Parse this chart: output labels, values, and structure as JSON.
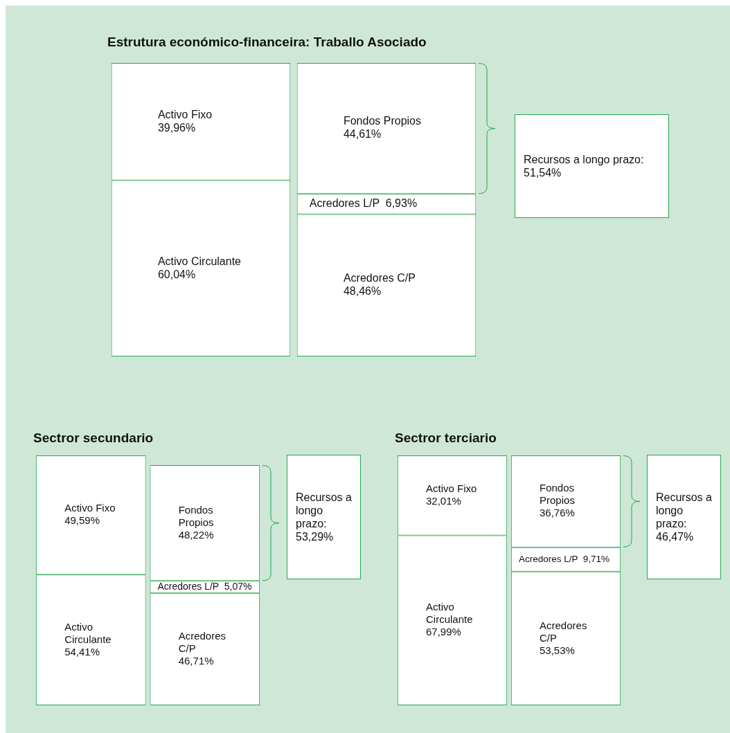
{
  "chart_data": [
    {
      "type": "bar",
      "title": "Estrutura económico-financeira: Traballo Asociado",
      "stacked": true,
      "legend": false,
      "tick_labels": false,
      "ylim": [
        0,
        100
      ],
      "categories": [
        null,
        null
      ],
      "series": [
        {
          "name": "Activo Circulante",
          "color": "#ffffff",
          "values": [
            60.04,
            null
          ],
          "value_labels": [
            "60,04%",
            null
          ]
        },
        {
          "name": "Activo Fixo",
          "color": "#ffffff",
          "values": [
            39.96,
            null
          ],
          "value_labels": [
            "39,96%",
            null
          ]
        },
        {
          "name": "Acredores C/P",
          "color": "#ffffff",
          "values": [
            null,
            48.46
          ],
          "value_labels": [
            null,
            "48,46%"
          ]
        },
        {
          "name": "Acredores L/P",
          "color": "#ffffff",
          "values": [
            null,
            6.93
          ],
          "value_labels": [
            null,
            "6,93%"
          ]
        },
        {
          "name": "Fondos Propios",
          "color": "#ffffff",
          "values": [
            null,
            44.61
          ],
          "value_labels": [
            null,
            "44,61%"
          ]
        }
      ],
      "annotations": [
        "Recursos a longo prazo: 51,54%"
      ]
    },
    {
      "type": "bar",
      "title": "Sectror secundario",
      "stacked": true,
      "legend": false,
      "tick_labels": false,
      "ylim": [
        0,
        104
      ],
      "categories": [
        null,
        null
      ],
      "series": [
        {
          "name": "Activo Circulante",
          "color": "#ffffff",
          "values": [
            54.41,
            null
          ],
          "value_labels": [
            "54,41%",
            null
          ]
        },
        {
          "name": "Activo Fixo",
          "color": "#ffffff",
          "values": [
            49.59,
            null
          ],
          "value_labels": [
            "49,59%",
            null
          ]
        },
        {
          "name": "Acredores C/P",
          "color": "#ffffff",
          "values": [
            null,
            46.71
          ],
          "value_labels": [
            null,
            "46,71%"
          ]
        },
        {
          "name": "Acredores L/P",
          "color": "#ffffff",
          "values": [
            null,
            5.07
          ],
          "value_labels": [
            null,
            "5,07%"
          ]
        },
        {
          "name": "Fondos Propios",
          "color": "#ffffff",
          "values": [
            null,
            48.22
          ],
          "value_labels": [
            null,
            "48,22%"
          ]
        }
      ],
      "annotations": [
        "Recursos a longo prazo: 53,29%"
      ]
    },
    {
      "type": "bar",
      "title": "Sectror terciario",
      "stacked": true,
      "legend": false,
      "tick_labels": false,
      "ylim": [
        0,
        100
      ],
      "categories": [
        null,
        null
      ],
      "series": [
        {
          "name": "Activo Circulante",
          "color": "#ffffff",
          "values": [
            67.99,
            null
          ],
          "value_labels": [
            "67,99%",
            null
          ]
        },
        {
          "name": "Activo Fixo",
          "color": "#ffffff",
          "values": [
            32.01,
            null
          ],
          "value_labels": [
            "32,01%",
            null
          ]
        },
        {
          "name": "Acredores C/P",
          "color": "#ffffff",
          "values": [
            null,
            53.53
          ],
          "value_labels": [
            null,
            "53,53%"
          ]
        },
        {
          "name": "Acredores L/P",
          "color": "#ffffff",
          "values": [
            null,
            9.71
          ],
          "value_labels": [
            null,
            "9,71%"
          ]
        },
        {
          "name": "Fondos Propios",
          "color": "#ffffff",
          "values": [
            null,
            36.76
          ],
          "value_labels": [
            null,
            "36,76%"
          ]
        }
      ],
      "annotations": [
        "Recursos a longo prazo: 46,47%"
      ]
    }
  ]
}
